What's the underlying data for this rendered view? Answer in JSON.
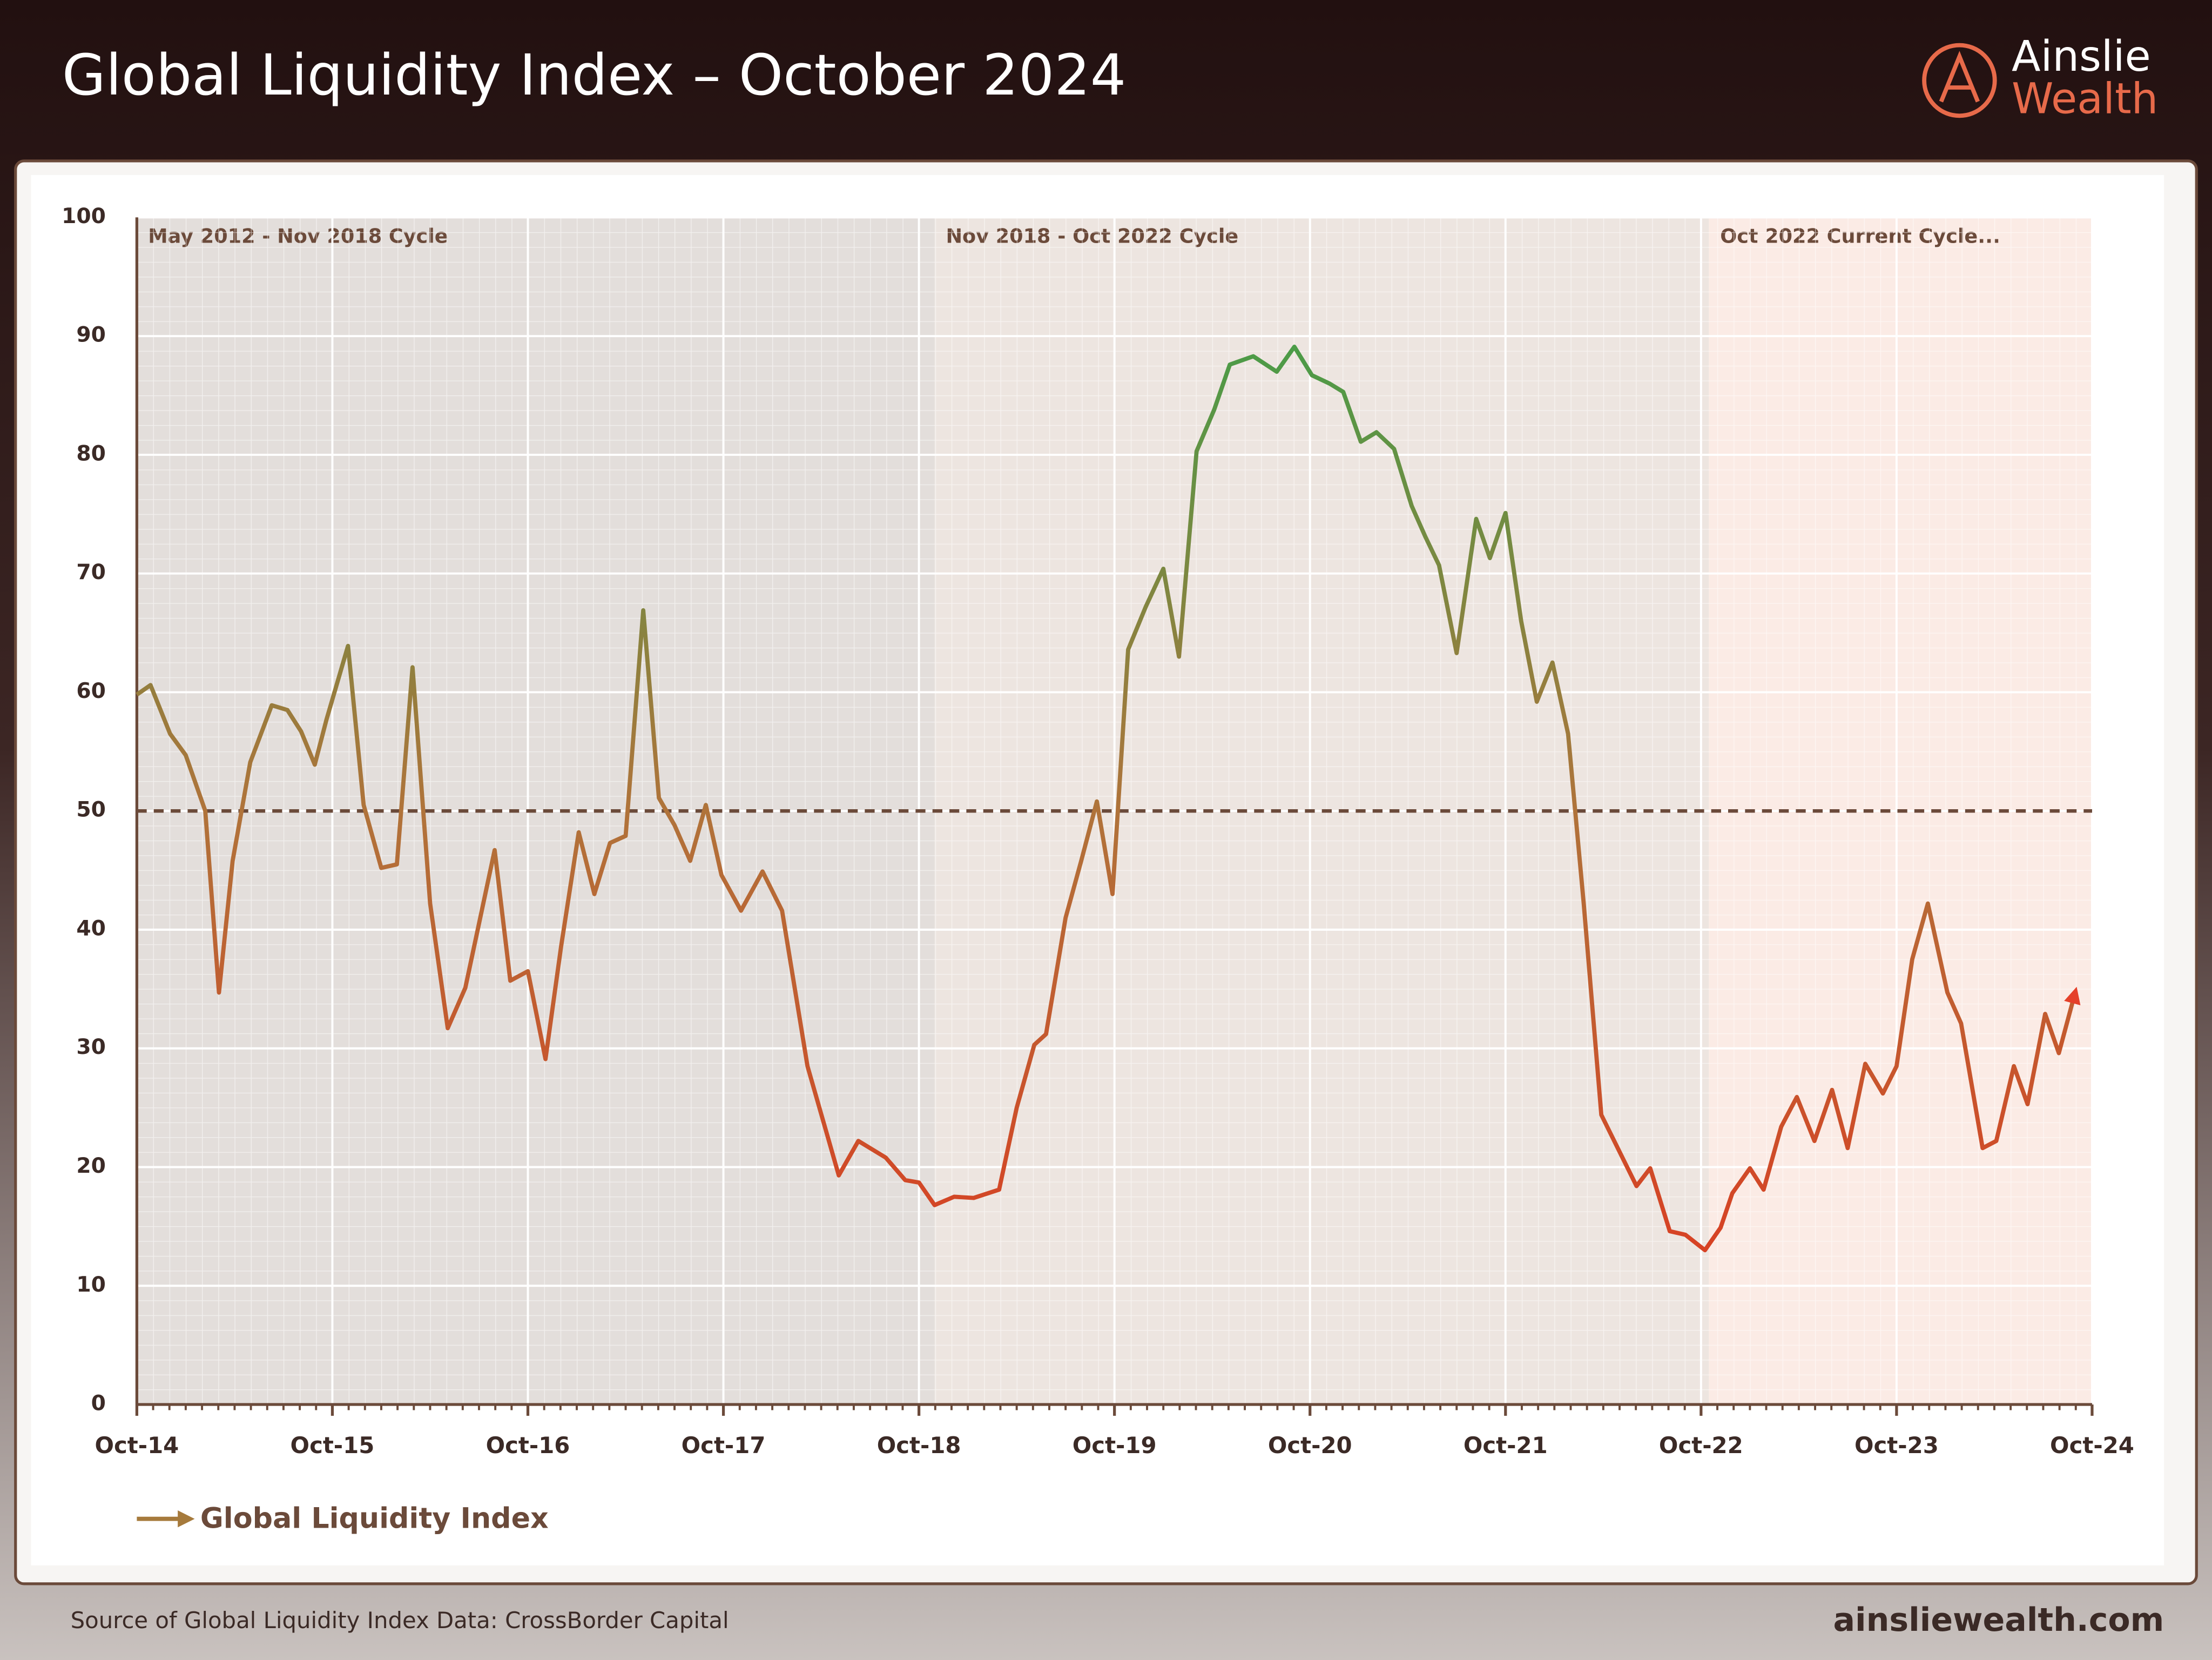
{
  "header": {
    "title": "Global Liquidity Index – October 2024",
    "logo_line1": "Ainslie",
    "logo_line2": "Wealth"
  },
  "footer": {
    "source": "Source of Global Liquidity Index Data: CrossBorder Capital",
    "site": "ainsliewealth.com"
  },
  "chart_data": {
    "type": "line",
    "xlim": [
      2014.75,
      2024.75
    ],
    "xticks": [
      {
        "value": 2014.75,
        "label": "Oct-14"
      },
      {
        "value": 2015.75,
        "label": "Oct-15"
      },
      {
        "value": 2016.75,
        "label": "Oct-16"
      },
      {
        "value": 2017.75,
        "label": "Oct-17"
      },
      {
        "value": 2018.75,
        "label": "Oct-18"
      },
      {
        "value": 2019.75,
        "label": "Oct-19"
      },
      {
        "value": 2020.75,
        "label": "Oct-20"
      },
      {
        "value": 2021.75,
        "label": "Oct-21"
      },
      {
        "value": 2022.75,
        "label": "Oct-22"
      },
      {
        "value": 2023.75,
        "label": "Oct-23"
      },
      {
        "value": 2024.75,
        "label": "Oct-24"
      }
    ],
    "ylim": [
      0,
      100
    ],
    "yticks": [
      0,
      10,
      20,
      30,
      40,
      50,
      60,
      70,
      80,
      90,
      100
    ],
    "grid": true,
    "reference_line": 50,
    "regions": [
      {
        "label": "May 2012 - Nov 2018 Cycle",
        "end": 2018.83,
        "color": "#e3dedb"
      },
      {
        "label": "Nov 2018 - Oct 2022 Cycle",
        "end": 2022.79,
        "color": "#ede5e0"
      },
      {
        "label": "Oct 2022 Current Cycle...",
        "color": "#fbebe5"
      }
    ],
    "x": [
      2014.75,
      2014.82,
      2014.92,
      2015.0,
      2015.1,
      2015.17,
      2015.24,
      2015.33,
      2015.44,
      2015.52,
      2015.59,
      2015.66,
      2015.72,
      2015.83,
      2015.91,
      2016.0,
      2016.08,
      2016.16,
      2016.25,
      2016.34,
      2016.43,
      2016.58,
      2016.66,
      2016.75,
      2016.84,
      2016.92,
      2017.01,
      2017.09,
      2017.17,
      2017.25,
      2017.34,
      2017.42,
      2017.5,
      2017.58,
      2017.66,
      2017.74,
      2017.84,
      2017.95,
      2018.05,
      2018.18,
      2018.34,
      2018.44,
      2018.58,
      2018.68,
      2018.75,
      2018.83,
      2018.93,
      2019.03,
      2019.16,
      2019.25,
      2019.34,
      2019.4,
      2019.5,
      2019.58,
      2019.66,
      2019.74,
      2019.82,
      2019.91,
      2020.0,
      2020.08,
      2020.17,
      2020.26,
      2020.34,
      2020.46,
      2020.58,
      2020.67,
      2020.76,
      2020.85,
      2020.92,
      2021.01,
      2021.09,
      2021.18,
      2021.27,
      2021.34,
      2021.41,
      2021.5,
      2021.6,
      2021.67,
      2021.75,
      2021.83,
      2021.91,
      2021.99,
      2022.07,
      2022.15,
      2022.24,
      2022.33,
      2022.42,
      2022.49,
      2022.59,
      2022.67,
      2022.77,
      2022.85,
      2022.91,
      2023.0,
      2023.07,
      2023.16,
      2023.24,
      2023.33,
      2023.42,
      2023.5,
      2023.59,
      2023.68,
      2023.75,
      2023.83,
      2023.91,
      2024.01,
      2024.08,
      2024.19,
      2024.26,
      2024.35,
      2024.42,
      2024.51,
      2024.58,
      2024.66
    ],
    "series": [
      {
        "name": "Global Liquidity Index",
        "color": "#a67a3c",
        "gradient": [
          "#e5301c",
          "#b0733a",
          "#2fa74b"
        ],
        "values": [
          59.8,
          60.6,
          56.5,
          54.7,
          50.0,
          34.7,
          45.8,
          54.1,
          58.9,
          58.5,
          56.7,
          53.9,
          57.7,
          63.9,
          50.5,
          45.2,
          45.5,
          62.1,
          42.2,
          31.7,
          35.1,
          46.7,
          35.7,
          36.5,
          29.1,
          38.6,
          48.2,
          43.0,
          47.3,
          47.9,
          66.9,
          51.1,
          48.8,
          45.8,
          50.5,
          44.6,
          41.6,
          44.9,
          41.6,
          28.5,
          19.3,
          22.2,
          20.8,
          18.9,
          18.7,
          16.8,
          17.5,
          17.4,
          18.1,
          25.0,
          30.3,
          31.2,
          41.0,
          45.8,
          50.8,
          43.0,
          63.6,
          67.2,
          70.4,
          63.0,
          80.3,
          83.8,
          87.6,
          88.3,
          87.0,
          89.1,
          86.7,
          86.0,
          85.3,
          81.1,
          81.9,
          80.5,
          75.7,
          73.1,
          70.7,
          63.3,
          74.6,
          71.3,
          75.1,
          66.0,
          59.2,
          62.5,
          56.5,
          42.2,
          24.4,
          21.4,
          18.4,
          19.9,
          14.6,
          14.3,
          13.0,
          14.9,
          17.8,
          19.9,
          18.1,
          23.4,
          25.9,
          22.2,
          26.5,
          21.6,
          28.7,
          26.2,
          28.5,
          37.5,
          42.2,
          34.7,
          32.1,
          21.6,
          22.2,
          28.5,
          25.3,
          32.9,
          29.6,
          34.5
        ]
      }
    ]
  }
}
